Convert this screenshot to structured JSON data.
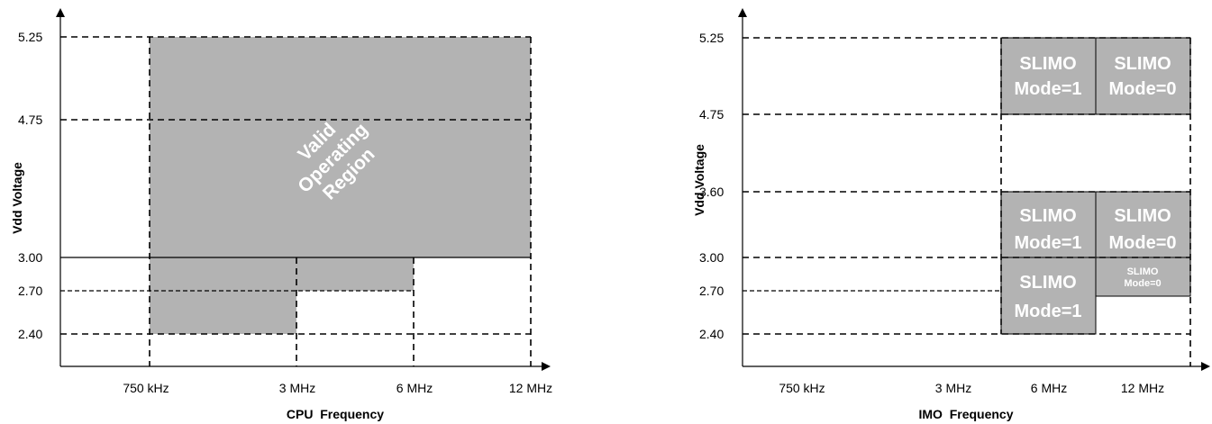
{
  "left_chart": {
    "ylabel": "Vdd Voltage",
    "xlabel": "CPU  Frequency",
    "y_ticks": [
      "5.25",
      "4.75",
      "3.00",
      "2.70",
      "2.40"
    ],
    "x_ticks": [
      "750 kHz",
      "3 MHz",
      "6 MHz",
      "12 MHz"
    ],
    "region_label": [
      "Valid",
      "Operating",
      "Region"
    ]
  },
  "right_chart": {
    "ylabel": "Vdd Voltage",
    "xlabel": "IMO  Frequency",
    "y_ticks": [
      "5.25",
      "4.75",
      "3.60",
      "3.00",
      "2.70",
      "2.40"
    ],
    "x_ticks": [
      "750 kHz",
      "3 MHz",
      "6 MHz",
      "12 MHz"
    ],
    "boxes": [
      {
        "line1": "SLIMO",
        "line2": "Mode=1"
      },
      {
        "line1": "SLIMO",
        "line2": "Mode=0"
      },
      {
        "line1": "SLIMO",
        "line2": "Mode=1"
      },
      {
        "line1": "SLIMO",
        "line2": "Mode=0"
      },
      {
        "line1": "SLIMO",
        "line2": "Mode=1"
      },
      {
        "line1": "SLIMO",
        "line2": "Mode=0"
      }
    ]
  },
  "colors": {
    "region_fill": "#b3b3b3",
    "line": "#000000",
    "region_text": "#ffffff"
  }
}
